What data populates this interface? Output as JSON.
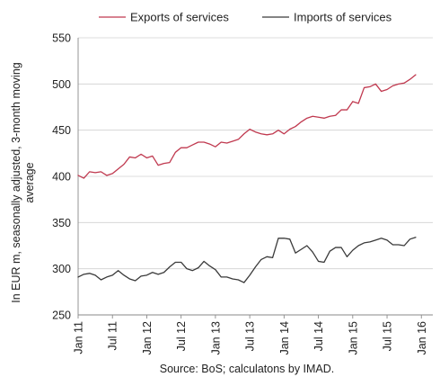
{
  "chart_data": {
    "type": "line",
    "ylabel_lines": [
      "In EUR m, seasonally adjusted, 3-month moving",
      "average"
    ],
    "ylim": [
      250,
      550
    ],
    "y_ticks": [
      250,
      300,
      350,
      400,
      450,
      500,
      550
    ],
    "x_ticks": [
      {
        "label": "Jan 11",
        "index": 0
      },
      {
        "label": "Jul 11",
        "index": 6
      },
      {
        "label": "Jan 12",
        "index": 12
      },
      {
        "label": "Jul 12",
        "index": 18
      },
      {
        "label": "Jan 13",
        "index": 24
      },
      {
        "label": "Jul 13",
        "index": 30
      },
      {
        "label": "Jan 14",
        "index": 36
      },
      {
        "label": "Jul 14",
        "index": 42
      },
      {
        "label": "Jan 15",
        "index": 48
      },
      {
        "label": "Jul 15",
        "index": 54
      },
      {
        "label": "Jan 16",
        "index": 60
      }
    ],
    "x_range": [
      0,
      62
    ],
    "gridlines": "horizontal",
    "legend_position": "top",
    "source": "Source: BoS; calculatons by IMAD.",
    "series": [
      {
        "name": "Exports of services",
        "color": "#c0394f",
        "values": [
          401,
          398,
          405,
          404,
          405,
          401,
          403,
          408,
          413,
          421,
          420,
          424,
          420,
          422,
          412,
          414,
          415,
          426,
          431,
          431,
          434,
          437,
          437,
          435,
          432,
          437,
          436,
          438,
          440,
          446,
          451,
          448,
          446,
          445,
          446,
          450,
          446,
          451,
          454,
          459,
          463,
          465,
          464,
          463,
          465,
          466,
          472,
          472,
          481,
          479,
          496,
          497,
          500,
          492,
          494,
          498,
          500,
          501,
          505,
          510
        ]
      },
      {
        "name": "Imports of services",
        "color": "#3a3a3a",
        "values": [
          291,
          294,
          295,
          293,
          288,
          291,
          293,
          298,
          293,
          289,
          287,
          292,
          293,
          296,
          294,
          296,
          302,
          307,
          307,
          300,
          298,
          301,
          308,
          303,
          299,
          291,
          291,
          289,
          288,
          285,
          293,
          302,
          310,
          313,
          312,
          333,
          333,
          332,
          317,
          321,
          325,
          318,
          308,
          307,
          319,
          323,
          323,
          313,
          320,
          325,
          328,
          329,
          331,
          333,
          331,
          326,
          326,
          325,
          332,
          334
        ]
      }
    ]
  }
}
